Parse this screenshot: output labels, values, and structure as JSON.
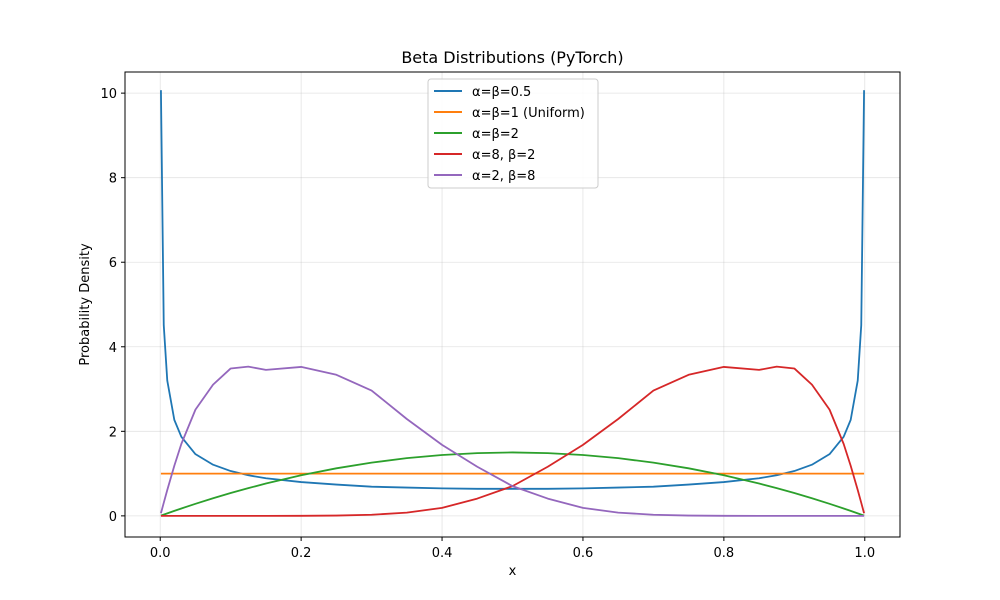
{
  "chart_data": {
    "type": "line",
    "title": "Beta Distributions (PyTorch)",
    "xlabel": "x",
    "ylabel": "Probability Density",
    "xlim": [
      -0.05,
      1.05
    ],
    "ylim": [
      -0.5,
      10.5
    ],
    "xticks": [
      0.0,
      0.2,
      0.4,
      0.6,
      0.8,
      1.0
    ],
    "xtick_labels": [
      "0.0",
      "0.2",
      "0.4",
      "0.6",
      "0.8",
      "1.0"
    ],
    "yticks": [
      0,
      2,
      4,
      6,
      8,
      10
    ],
    "ytick_labels": [
      "0",
      "2",
      "4",
      "6",
      "8",
      "10"
    ],
    "grid": true,
    "legend_position": "upper-center",
    "x": [
      0.001,
      0.005,
      0.01,
      0.02,
      0.03,
      0.05,
      0.075,
      0.1,
      0.125,
      0.15,
      0.2,
      0.25,
      0.3,
      0.35,
      0.4,
      0.45,
      0.5,
      0.55,
      0.6,
      0.65,
      0.7,
      0.75,
      0.8,
      0.85,
      0.875,
      0.9,
      0.925,
      0.95,
      0.97,
      0.98,
      0.99,
      0.995,
      0.999
    ],
    "series": [
      {
        "name": "α=β=0.5",
        "color": "#1f77b4",
        "values": [
          10.07,
          4.51,
          3.2,
          2.27,
          1.87,
          1.46,
          1.21,
          1.06,
          0.96,
          0.89,
          0.8,
          0.74,
          0.69,
          0.67,
          0.65,
          0.64,
          0.64,
          0.64,
          0.65,
          0.67,
          0.69,
          0.74,
          0.8,
          0.89,
          0.96,
          1.06,
          1.21,
          1.46,
          1.87,
          2.27,
          3.2,
          4.51,
          10.07
        ]
      },
      {
        "name": "α=β=1 (Uniform)",
        "color": "#ff7f0e",
        "values": [
          1,
          1,
          1,
          1,
          1,
          1,
          1,
          1,
          1,
          1,
          1,
          1,
          1,
          1,
          1,
          1,
          1,
          1,
          1,
          1,
          1,
          1,
          1,
          1,
          1,
          1,
          1,
          1,
          1,
          1,
          1,
          1,
          1
        ]
      },
      {
        "name": "α=β=2",
        "color": "#2ca02c",
        "values": [
          0.006,
          0.03,
          0.059,
          0.118,
          0.175,
          0.285,
          0.416,
          0.54,
          0.656,
          0.765,
          0.96,
          1.125,
          1.26,
          1.365,
          1.44,
          1.485,
          1.5,
          1.485,
          1.44,
          1.365,
          1.26,
          1.125,
          0.96,
          0.765,
          0.656,
          0.54,
          0.416,
          0.285,
          0.175,
          0.118,
          0.059,
          0.03,
          0.006
        ]
      },
      {
        "name": "α=8, β=2",
        "color": "#d62728",
        "values": [
          0,
          0,
          0,
          0,
          0,
          0,
          0,
          0,
          0,
          0,
          0.0011,
          0.0066,
          0.0257,
          0.0773,
          0.1887,
          0.4089,
          0.7031,
          1.1624,
          1.6796,
          2.2914,
          2.9647,
          3.3371,
          3.5232,
          3.4531,
          3.5298,
          3.4868,
          3.1043,
          2.5137,
          1.7032,
          1.1852,
          0.6125,
          0.3089,
          0.0623
        ]
      },
      {
        "name": "α=2, β=8",
        "color": "#9467bd",
        "values": [
          0.0623,
          0.3089,
          0.6125,
          1.1852,
          1.7032,
          2.5137,
          3.1043,
          3.4868,
          3.5298,
          3.4531,
          3.5232,
          3.3371,
          2.9647,
          2.2914,
          1.6796,
          1.1624,
          0.7031,
          0.4089,
          0.1887,
          0.0773,
          0.0257,
          0.0066,
          0.0011,
          0,
          0,
          0,
          0,
          0,
          0,
          0,
          0,
          0,
          0
        ]
      }
    ]
  }
}
